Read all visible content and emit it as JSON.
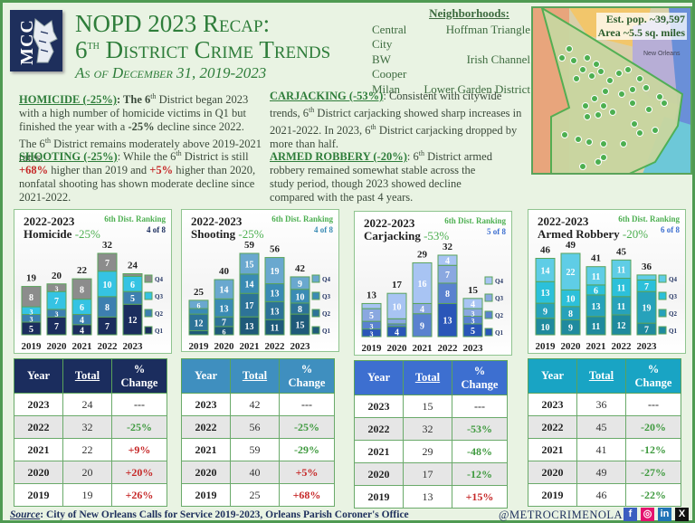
{
  "header": {
    "logo_text": "MCC",
    "title_line1": "NOPD 2023 Recap:",
    "title_line2_prefix": "6",
    "title_line2_sup": "th",
    "title_line2_rest": " District Crime Trends",
    "subtitle": "As of December 31, 2019-2023"
  },
  "neighborhoods": {
    "heading": "Neighborhoods",
    "items": [
      "Central City",
      "Hoffman Triangle",
      "BW Cooper",
      "Irish Channel",
      "Milan",
      "Lower Garden District"
    ]
  },
  "map": {
    "population": "Est. pop. ~39,597",
    "area": "Area ~5.5 sq. miles",
    "label": "New Orleans"
  },
  "narrative": {
    "homicide": {
      "heading": "HOMICIDE (-25%)",
      "text1": ": The 6",
      "sup": "th",
      "text2": " District began 2023 with a high number of homicide victims in Q1 but finished the year with a ",
      "bold": "-25%",
      "text3": " decline since 2022. The 6",
      "sup2": "th",
      "text4": " District remains moderately above 2019-2021 rates."
    },
    "shooting": {
      "heading": "SHOOTING (-25%)",
      "text1": ": While the 6",
      "sup": "th",
      "text2": " District is still ",
      "red1": "+68%",
      "text3": " higher than 2019 and ",
      "red2": "+5%",
      "text4": " higher than 2020, nonfatal shooting has shown moderate decline since 2021-2022."
    },
    "carjacking": {
      "heading": "CARJACKING (-53%)",
      "text1": ": Consistent with citywide trends, 6",
      "sup": "th",
      "text2": " District carjacking showed sharp increases in 2021-2022.  In 2023, 6",
      "sup2": "th",
      "text3": " District carjacking dropped by more than half."
    },
    "robbery": {
      "heading": "ARMED ROBBERY (-20%)",
      "text1": ": 6",
      "sup": "th",
      "text2": " District armed robbery remained somewhat stable across the study period, though 2023 showed decline compared with the past 4 years."
    }
  },
  "chart_data": [
    {
      "type": "bar",
      "stacked": true,
      "title": "Homicide",
      "period": "2022-2023",
      "change": "-25%",
      "ranking_label": "6th Dist. Ranking",
      "ranking": "4 of 8",
      "categories": [
        "2019",
        "2020",
        "2021",
        "2022",
        "2023"
      ],
      "totals": [
        19,
        20,
        22,
        32,
        24
      ],
      "series": [
        {
          "name": "Q1",
          "values": [
            5,
            7,
            4,
            7,
            12
          ]
        },
        {
          "name": "Q2",
          "values": [
            3,
            3,
            4,
            8,
            5
          ]
        },
        {
          "name": "Q3",
          "values": [
            3,
            7,
            6,
            10,
            6
          ]
        },
        {
          "name": "Q4",
          "values": [
            8,
            3,
            8,
            7,
            1
          ]
        }
      ],
      "colors": [
        "#1b2d5e",
        "#3d7fb0",
        "#35c3e3",
        "#8c8c8c"
      ],
      "rank_color": "#1b2d5e",
      "header_color": "#1b2d5e"
    },
    {
      "type": "bar",
      "stacked": true,
      "title": "Shooting",
      "period": "2022-2023",
      "change": "-25%",
      "ranking_label": "6th Dist. Ranking",
      "ranking": "4 of 8",
      "categories": [
        "2019",
        "2020",
        "2021",
        "2022",
        "2023"
      ],
      "totals": [
        25,
        40,
        59,
        56,
        42
      ],
      "series": [
        {
          "name": "Q1",
          "values": [
            3,
            6,
            13,
            11,
            15
          ]
        },
        {
          "name": "Q2",
          "values": [
            12,
            7,
            17,
            13,
            8
          ]
        },
        {
          "name": "Q3",
          "values": [
            4,
            13,
            14,
            13,
            10
          ]
        },
        {
          "name": "Q4",
          "values": [
            6,
            14,
            15,
            19,
            9
          ]
        }
      ],
      "colors": [
        "#1f5a7a",
        "#2d7398",
        "#3a8bb4",
        "#6aa8cf"
      ],
      "rank_color": "#3a8bb4",
      "header_color": "#3f8fbf"
    },
    {
      "type": "bar",
      "stacked": true,
      "title": "Carjacking",
      "period": "2022-2023",
      "change": "-53%",
      "ranking_label": "6th Dist. Ranking",
      "ranking": "5 of 8",
      "categories": [
        "2019",
        "2020",
        "2021",
        "2022",
        "2023"
      ],
      "totals": [
        13,
        17,
        29,
        32,
        15
      ],
      "series": [
        {
          "name": "Q1",
          "values": [
            3,
            4,
            0,
            13,
            5
          ]
        },
        {
          "name": "Q2",
          "values": [
            3,
            1,
            9,
            8,
            3
          ]
        },
        {
          "name": "Q3",
          "values": [
            5,
            2,
            4,
            7,
            3
          ]
        },
        {
          "name": "Q4",
          "values": [
            2,
            10,
            16,
            4,
            4
          ]
        }
      ],
      "colors": [
        "#2a56b8",
        "#5a82cf",
        "#8aa8e0",
        "#a8c4f3"
      ],
      "rank_color": "#3d6fd0",
      "header_color": "#3d6fd0"
    },
    {
      "type": "bar",
      "stacked": true,
      "title": "Armed Robbery",
      "period": "2022-2023",
      "change": "-20%",
      "ranking_label": "6th Dist. Ranking",
      "ranking": "6 of 8",
      "categories": [
        "2019",
        "2020",
        "2021",
        "2022",
        "2023"
      ],
      "totals": [
        46,
        49,
        41,
        45,
        36
      ],
      "series": [
        {
          "name": "Q1",
          "values": [
            10,
            9,
            11,
            12,
            7
          ]
        },
        {
          "name": "Q2",
          "values": [
            9,
            8,
            13,
            11,
            19
          ]
        },
        {
          "name": "Q3",
          "values": [
            13,
            10,
            6,
            11,
            7
          ]
        },
        {
          "name": "Q4",
          "values": [
            14,
            22,
            11,
            11,
            3
          ]
        }
      ],
      "colors": [
        "#1f8a9e",
        "#27a2bb",
        "#2cc0da",
        "#5fcde6"
      ],
      "rank_color": "#3d6fd0",
      "header_color": "#19a4c4"
    }
  ],
  "tables": [
    {
      "headers": [
        "Year",
        "Total",
        "% Change"
      ],
      "rows": [
        [
          "2023",
          "24",
          "---"
        ],
        [
          "2022",
          "32",
          "-25%"
        ],
        [
          "2021",
          "22",
          "+9%"
        ],
        [
          "2020",
          "20",
          "+20%"
        ],
        [
          "2019",
          "19",
          "+26%"
        ]
      ]
    },
    {
      "headers": [
        "Year",
        "Total",
        "% Change"
      ],
      "rows": [
        [
          "2023",
          "42",
          "---"
        ],
        [
          "2022",
          "56",
          "-25%"
        ],
        [
          "2021",
          "59",
          "-29%"
        ],
        [
          "2020",
          "40",
          "+5%"
        ],
        [
          "2019",
          "25",
          "+68%"
        ]
      ]
    },
    {
      "headers": [
        "Year",
        "Total",
        "% Change"
      ],
      "rows": [
        [
          "2023",
          "15",
          "---"
        ],
        [
          "2022",
          "32",
          "-53%"
        ],
        [
          "2021",
          "29",
          "-48%"
        ],
        [
          "2020",
          "17",
          "-12%"
        ],
        [
          "2019",
          "13",
          "+15%"
        ]
      ]
    },
    {
      "headers": [
        "Year",
        "Total",
        "% Change"
      ],
      "rows": [
        [
          "2023",
          "36",
          "---"
        ],
        [
          "2022",
          "45",
          "-20%"
        ],
        [
          "2021",
          "41",
          "-12%"
        ],
        [
          "2020",
          "49",
          "-27%"
        ],
        [
          "2019",
          "46",
          "-22%"
        ]
      ]
    }
  ],
  "footer": {
    "source_label": "Source",
    "source_text": ": City of New Orleans Calls for Service 2019-2023, Orleans Parish Coroner's Office",
    "handle": "@METROCRIMENOLA",
    "separator": "|",
    "social": [
      {
        "name": "facebook",
        "glyph": "f",
        "color": "#3b5ec0"
      },
      {
        "name": "instagram",
        "glyph": "◎",
        "color": "#e4136f"
      },
      {
        "name": "linkedin",
        "glyph": "in",
        "color": "#1f73b7"
      },
      {
        "name": "x",
        "glyph": "X",
        "color": "#111111"
      }
    ]
  }
}
